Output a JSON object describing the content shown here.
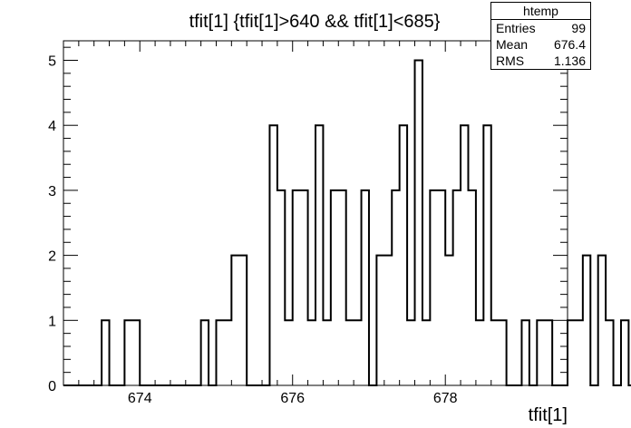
{
  "chart_data": {
    "type": "bar",
    "title": "tfit[1] {tfit[1]>640 && tfit[1]<685}",
    "xlabel": "tfit[1]",
    "ylabel": "",
    "xlim": [
      673.0,
      679.6
    ],
    "ylim": [
      0,
      5.3
    ],
    "bin_width": 0.1,
    "x_ticks": [
      "674",
      "676",
      "678"
    ],
    "x_tick_values": [
      674,
      676,
      678
    ],
    "y_ticks": [
      "0",
      "1",
      "2",
      "3",
      "4",
      "5"
    ],
    "y_tick_values": [
      0,
      1,
      2,
      3,
      4,
      5
    ],
    "values": [
      0,
      0,
      0,
      0,
      0,
      1,
      0,
      0,
      1,
      1,
      0,
      0,
      0,
      0,
      0,
      0,
      0,
      0,
      1,
      0,
      1,
      1,
      2,
      2,
      0,
      0,
      0,
      4,
      3,
      1,
      3,
      3,
      1,
      4,
      1,
      3,
      3,
      1,
      1,
      3,
      0,
      2,
      2,
      3,
      4,
      1,
      5,
      1,
      3,
      3,
      2,
      3,
      4,
      3,
      1,
      4,
      1,
      1,
      0,
      0,
      1,
      0,
      1,
      1,
      0,
      0,
      1,
      1,
      2,
      0,
      2,
      1,
      0,
      1,
      0,
      1,
      0,
      0,
      0,
      1,
      0,
      0,
      0,
      0,
      0,
      0,
      0
    ],
    "grid": false,
    "legend": "none",
    "line_color": "#000000"
  },
  "stats": {
    "title": "htemp",
    "rows": [
      {
        "label": "Entries",
        "value": "99"
      },
      {
        "label": "Mean",
        "value": "676.4"
      },
      {
        "label": "RMS",
        "value": "1.136"
      }
    ]
  }
}
